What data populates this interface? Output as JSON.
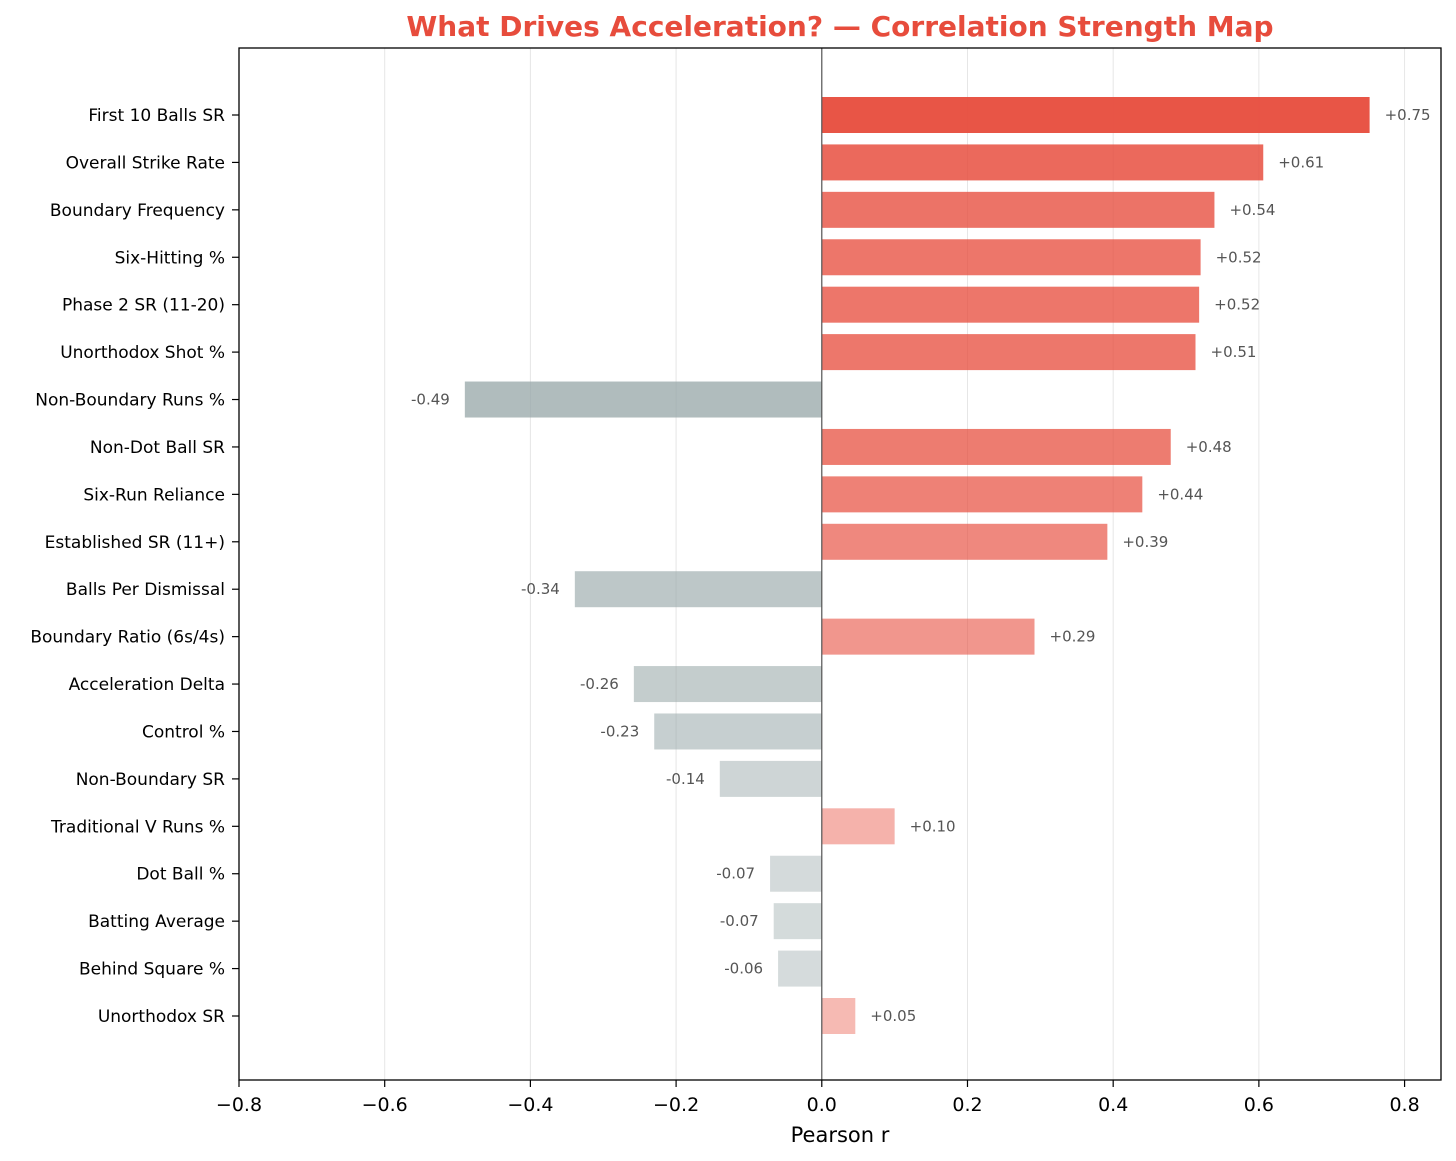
{
  "chart_data": {
    "type": "bar",
    "orientation": "horizontal",
    "title": "What Drives Acceleration? — Correlation Strength Map",
    "xlabel": "Pearson r",
    "ylabel": "",
    "xlim": [
      -0.8,
      0.85
    ],
    "xticks": [
      -0.8,
      -0.6,
      -0.4,
      -0.2,
      0.0,
      0.2,
      0.4,
      0.6,
      0.8
    ],
    "xtick_labels": [
      "−0.8",
      "−0.6",
      "−0.4",
      "−0.2",
      "0.0",
      "0.2",
      "0.4",
      "0.6",
      "0.8"
    ],
    "grid": "vertical",
    "categories": [
      "First 10 Balls SR",
      "Overall Strike Rate",
      "Boundary Frequency",
      "Six-Hitting %",
      "Phase 2 SR (11-20)",
      "Unorthodox Shot %",
      "Non-Boundary Runs %",
      "Non-Dot Ball SR",
      "Six-Run Reliance",
      "Established SR (11+)",
      "Balls Per Dismissal",
      "Boundary Ratio (6s/4s)",
      "Acceleration Delta",
      "Control %",
      "Non-Boundary SR",
      "Traditional V Runs %",
      "Dot Ball %",
      "Batting Average",
      "Behind Square %",
      "Unorthodox SR"
    ],
    "values": [
      0.752,
      0.606,
      0.539,
      0.52,
      0.518,
      0.513,
      -0.49,
      0.479,
      0.44,
      0.392,
      -0.339,
      0.292,
      -0.258,
      -0.23,
      -0.14,
      0.1,
      -0.071,
      -0.066,
      -0.06,
      0.046
    ],
    "value_labels": [
      "+0.75",
      "+0.61",
      "+0.54",
      "+0.52",
      "+0.52",
      "+0.51",
      "-0.49",
      "+0.48",
      "+0.44",
      "+0.39",
      "-0.34",
      "+0.29",
      "-0.26",
      "-0.23",
      "-0.14",
      "+0.10",
      "-0.07",
      "-0.07",
      "-0.06",
      "+0.05"
    ],
    "colors": {
      "positive": "#e74c3c",
      "negative": "#95a5a6",
      "title": "#e74c3c"
    }
  }
}
